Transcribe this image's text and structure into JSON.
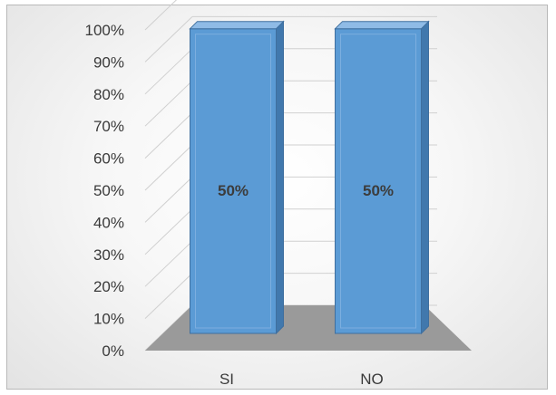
{
  "chart_data": {
    "type": "bar",
    "categories": [
      "SI",
      "NO"
    ],
    "values": [
      50,
      50
    ],
    "data_labels": [
      "50%",
      "50%"
    ],
    "ylim": [
      0,
      100
    ],
    "y_ticks": [
      "0%",
      "10%",
      "20%",
      "30%",
      "40%",
      "50%",
      "60%",
      "70%",
      "80%",
      "90%",
      "100%"
    ],
    "y_tick_values": [
      0,
      10,
      20,
      30,
      40,
      50,
      60,
      70,
      80,
      90,
      100
    ],
    "grid": true,
    "style": "3d-column",
    "colors": {
      "bar_front": "#5b9bd5",
      "bar_side": "#4178ad",
      "bar_top": "#8fbbe6",
      "floor": "#9a9a9a",
      "gridline": "#d0d0d0"
    }
  }
}
